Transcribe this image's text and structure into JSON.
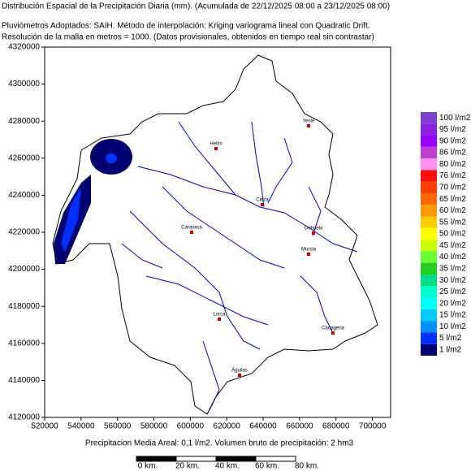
{
  "header": {
    "title": "Distribución Espacial de la Precipitación Diaria (mm). (Acumulada de 22/12/2025 08:00 a 23/12/2025 08:00)",
    "line2": "Pluviómetros Adoptados: SAIH.  Método de interpolación: Kriging variograma lineal con Quadratic Drift.",
    "line3": "Resolución de la malla en metros = 1000. (Datos provisionales, obtenidos en tiempo real sin contrastar)"
  },
  "map": {
    "xlim": [
      520000,
      710000
    ],
    "ylim": [
      4120000,
      4320000
    ],
    "xticks": [
      520000,
      540000,
      560000,
      580000,
      600000,
      620000,
      640000,
      660000,
      680000,
      700000
    ],
    "yticks": [
      4120000,
      4140000,
      4160000,
      4180000,
      4200000,
      4220000,
      4240000,
      4260000,
      4280000,
      4300000,
      4320000
    ],
    "cities": [
      "Yeste",
      "Hellín",
      "Cieza",
      "Caravaca",
      "Orihuela",
      "Murcia",
      "Lorca",
      "Cartagena",
      "Águilas"
    ]
  },
  "legend": [
    {
      "label": "100 l/m2",
      "color": "#7a3fcf"
    },
    {
      "label": "95 l/m2",
      "color": "#8a22e0"
    },
    {
      "label": "90 l/m2",
      "color": "#9a00ff"
    },
    {
      "label": "86 l/m2",
      "color": "#c040d0"
    },
    {
      "label": "80 l/m2",
      "color": "#ff90f0"
    },
    {
      "label": "76 l/m2",
      "color": "#ff1010"
    },
    {
      "label": "70 l/m2",
      "color": "#ff4000"
    },
    {
      "label": "65 l/m2",
      "color": "#ff6a00"
    },
    {
      "label": "60 l/m2",
      "color": "#ff9a00"
    },
    {
      "label": "55 l/m2",
      "color": "#ffcc00"
    },
    {
      "label": "50 l/m2",
      "color": "#ffff00"
    },
    {
      "label": "45 l/m2",
      "color": "#ccff00"
    },
    {
      "label": "40 l/m2",
      "color": "#66ff33"
    },
    {
      "label": "35 l/m2",
      "color": "#22cc22"
    },
    {
      "label": "30 l/m2",
      "color": "#00dd88"
    },
    {
      "label": "25 l/m2",
      "color": "#00ffcc"
    },
    {
      "label": "20 l/m2",
      "color": "#00ffff"
    },
    {
      "label": "15 l/m2",
      "color": "#00ccff"
    },
    {
      "label": "10 l/m2",
      "color": "#0090ff"
    },
    {
      "label": "5 l/m2",
      "color": "#0030ff"
    },
    {
      "label": "1 l/m2",
      "color": "#000070"
    }
  ],
  "footer": "Precipitacion Media Areal: 0,1 l/m2. Volumen bruto de precipitación: 2 hm3",
  "scale_bar": [
    "0 km.",
    "20 km.",
    "40 km.",
    "60 km.",
    "80 km."
  ]
}
